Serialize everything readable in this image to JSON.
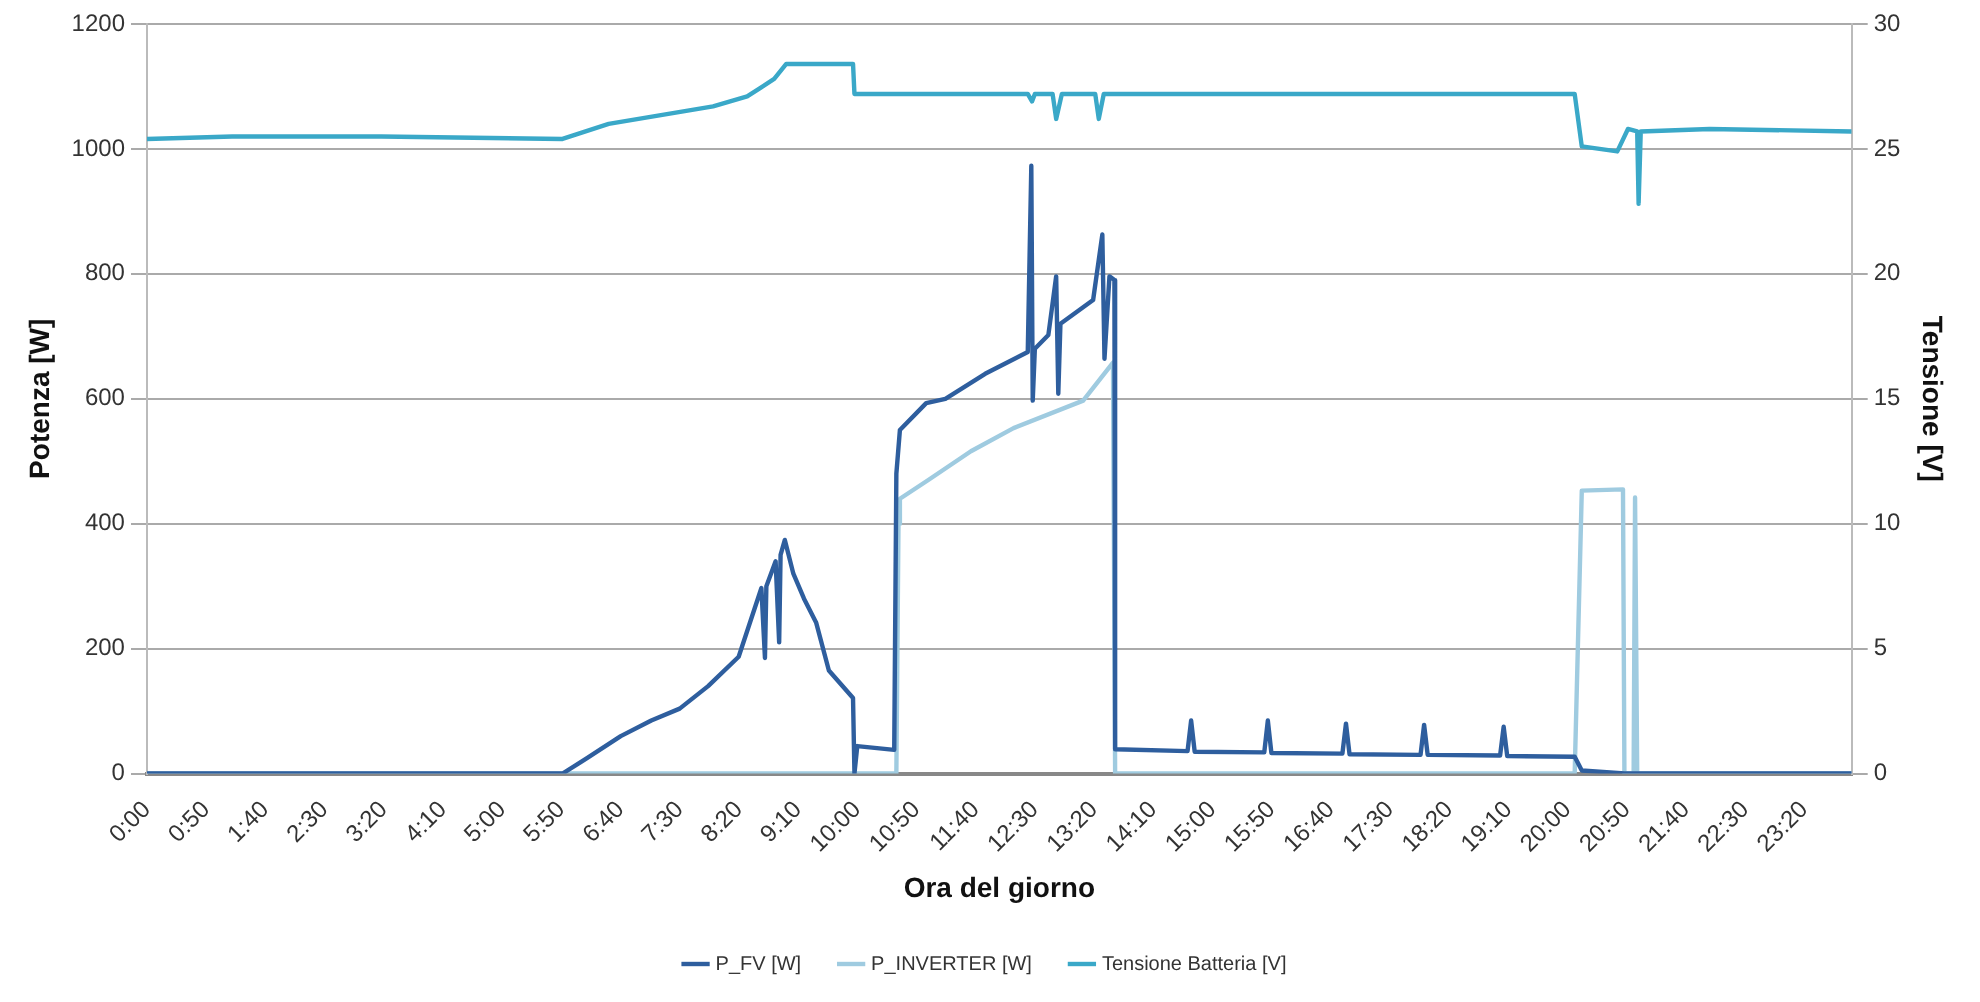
{
  "chart_data": {
    "type": "line",
    "xlabel": "Ora del giorno",
    "ylabel": "Potenza [W]",
    "y2label": "Tensione [V]",
    "xlim": [
      0,
      24
    ],
    "xticks": [
      {
        "value": 0,
        "label": "0:00"
      },
      {
        "value": 0.8333,
        "label": "0:50"
      },
      {
        "value": 1.6667,
        "label": "1:40"
      },
      {
        "value": 2.5,
        "label": "2:30"
      },
      {
        "value": 3.3333,
        "label": "3:20"
      },
      {
        "value": 4.1667,
        "label": "4:10"
      },
      {
        "value": 5,
        "label": "5:00"
      },
      {
        "value": 5.8333,
        "label": "5:50"
      },
      {
        "value": 6.6667,
        "label": "6:40"
      },
      {
        "value": 7.5,
        "label": "7:30"
      },
      {
        "value": 8.3333,
        "label": "8:20"
      },
      {
        "value": 9.1667,
        "label": "9:10"
      },
      {
        "value": 10,
        "label": "10:00"
      },
      {
        "value": 10.8333,
        "label": "10:50"
      },
      {
        "value": 11.6667,
        "label": "11:40"
      },
      {
        "value": 12.5,
        "label": "12:30"
      },
      {
        "value": 13.3333,
        "label": "13:20"
      },
      {
        "value": 14.1667,
        "label": "14:10"
      },
      {
        "value": 15,
        "label": "15:00"
      },
      {
        "value": 15.8333,
        "label": "15:50"
      },
      {
        "value": 16.6667,
        "label": "16:40"
      },
      {
        "value": 17.5,
        "label": "17:30"
      },
      {
        "value": 18.3333,
        "label": "18:20"
      },
      {
        "value": 19.1667,
        "label": "19:10"
      },
      {
        "value": 20,
        "label": "20:00"
      },
      {
        "value": 20.8333,
        "label": "20:50"
      },
      {
        "value": 21.6667,
        "label": "21:40"
      },
      {
        "value": 22.5,
        "label": "22:30"
      },
      {
        "value": 23.3333,
        "label": "23:20"
      }
    ],
    "ylim": [
      0,
      1200
    ],
    "yticks": [
      0,
      200,
      400,
      600,
      800,
      1000,
      1200
    ],
    "y2lim": [
      0,
      30
    ],
    "y2ticks": [
      0,
      5,
      10,
      15,
      20,
      25,
      30
    ],
    "grid": "y",
    "legend": "bottom",
    "line_style": "solid",
    "series": [
      {
        "name": "P_FV [W]",
        "color": "#2e5e9e",
        "x": [
          0,
          5.85,
          6.2,
          6.67,
          7.1,
          7.5,
          7.9,
          8.33,
          8.65,
          8.7,
          8.72,
          8.85,
          8.9,
          8.92,
          8.98,
          9.1,
          9.25,
          9.42,
          9.6,
          9.94,
          9.96,
          10.0,
          10.52,
          10.55,
          10.6,
          10.97,
          11.24,
          11.8,
          12.4,
          12.45,
          12.47,
          12.5,
          12.69,
          12.8,
          12.83,
          12.86,
          13.32,
          13.45,
          13.48,
          13.55,
          13.62,
          13.63,
          14.65,
          14.7,
          14.75,
          15.73,
          15.78,
          15.83,
          16.83,
          16.88,
          16.93,
          17.93,
          17.98,
          18.03,
          19.05,
          19.1,
          19.15,
          20.1,
          20.2,
          20.8,
          24
        ],
        "values": [
          0,
          0,
          25,
          60,
          85,
          104,
          140,
          187,
          297,
          185,
          300,
          340,
          210,
          350,
          374,
          320,
          280,
          242,
          165,
          121,
          0,
          44,
          38,
          480,
          550,
          593,
          600,
          640,
          675,
          973,
          597,
          680,
          702,
          796,
          608,
          720,
          758,
          863,
          664,
          796,
          790,
          39,
          36,
          85,
          35,
          34,
          85,
          33,
          32,
          80,
          31,
          30,
          78,
          30,
          29,
          75,
          28,
          27,
          5,
          0,
          0
        ]
      },
      {
        "name": "P_INVERTER [W]",
        "color": "#9fcbe0",
        "x": [
          0,
          10.55,
          10.58,
          10.6,
          11.0,
          11.6,
          12.2,
          13.18,
          13.6,
          13.63,
          20.1,
          20.2,
          20.78,
          20.8,
          20.93,
          20.95,
          20.98,
          24
        ],
        "values": [
          0,
          0,
          400,
          440,
          470,
          516,
          553,
          597,
          658,
          0,
          0,
          453,
          455,
          0,
          0,
          442,
          0,
          0
        ]
      },
      {
        "name": "Tensione Batteria [V]",
        "color": "#3aa8c8",
        "axis": "y2",
        "x": [
          0,
          1.2,
          3.3,
          5.85,
          6.5,
          7.97,
          8.45,
          8.83,
          9.0,
          9.94,
          9.96,
          12.4,
          12.46,
          12.5,
          12.75,
          12.8,
          12.88,
          13.35,
          13.4,
          13.47,
          20.1,
          20.2,
          20.7,
          20.85,
          20.98,
          21.0,
          21.03,
          22,
          24
        ],
        "values": [
          25.4,
          25.5,
          25.5,
          25.4,
          26.0,
          26.7,
          27.1,
          27.8,
          28.4,
          28.4,
          27.2,
          27.2,
          26.9,
          27.2,
          27.2,
          26.2,
          27.2,
          27.2,
          26.2,
          27.2,
          27.2,
          25.1,
          24.9,
          25.8,
          25.7,
          22.8,
          25.7,
          25.8,
          25.7
        ]
      }
    ]
  }
}
